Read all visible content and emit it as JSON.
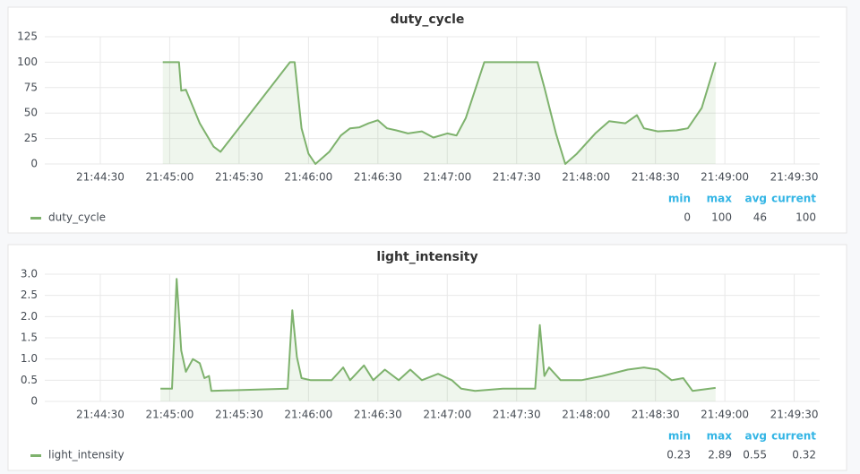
{
  "chart_data": [
    {
      "type": "line",
      "title": "duty_cycle",
      "x": [
        "21:44:57",
        "21:45:04",
        "21:45:05",
        "21:45:07",
        "21:45:13",
        "21:45:19",
        "21:45:22",
        "21:45:52",
        "21:45:54",
        "21:45:57",
        "21:46:00",
        "21:46:03",
        "21:46:09",
        "21:46:14",
        "21:46:18",
        "21:46:22",
        "21:46:26",
        "21:46:30",
        "21:46:34",
        "21:46:38",
        "21:46:43",
        "21:46:49",
        "21:46:54",
        "21:47:00",
        "21:47:04",
        "21:47:08",
        "21:47:16",
        "21:47:39",
        "21:47:42",
        "21:47:47",
        "21:47:51",
        "21:47:56",
        "21:48:04",
        "21:48:10",
        "21:48:17",
        "21:48:22",
        "21:48:25",
        "21:48:31",
        "21:48:39",
        "21:48:44",
        "21:48:50",
        "21:48:56"
      ],
      "series": [
        {
          "name": "duty_cycle",
          "color": "#7eb26d",
          "values": [
            100,
            100,
            72,
            73,
            40,
            17,
            12,
            100,
            100,
            35,
            10,
            0,
            12,
            28,
            35,
            36,
            40,
            43,
            35,
            33,
            30,
            32,
            26,
            30,
            28,
            45,
            100,
            100,
            75,
            30,
            0,
            10,
            30,
            42,
            40,
            48,
            35,
            32,
            33,
            35,
            55,
            100
          ]
        }
      ],
      "xlim": [
        "21:44:06",
        "21:49:41"
      ],
      "xticks": [
        "21:44:30",
        "21:45:00",
        "21:45:30",
        "21:46:00",
        "21:46:30",
        "21:47:00",
        "21:47:30",
        "21:48:00",
        "21:48:30",
        "21:49:00",
        "21:49:30"
      ],
      "ylim": [
        0,
        125
      ],
      "yticks": [
        0,
        25,
        50,
        75,
        100,
        125
      ],
      "grid": true,
      "fill": true,
      "stats_headers": [
        "min",
        "max",
        "avg",
        "current"
      ],
      "stats_values": [
        0,
        100,
        46,
        100
      ]
    },
    {
      "type": "line",
      "title": "light_intensity",
      "x": [
        "21:44:56",
        "21:45:01",
        "21:45:03",
        "21:45:05",
        "21:45:07",
        "21:45:10",
        "21:45:13",
        "21:45:15",
        "21:45:17",
        "21:45:18",
        "21:45:51",
        "21:45:53",
        "21:45:55",
        "21:45:57",
        "21:46:01",
        "21:46:10",
        "21:46:15",
        "21:46:18",
        "21:46:24",
        "21:46:28",
        "21:46:33",
        "21:46:39",
        "21:46:44",
        "21:46:49",
        "21:46:56",
        "21:47:02",
        "21:47:06",
        "21:47:12",
        "21:47:24",
        "21:47:35",
        "21:47:38",
        "21:47:40",
        "21:47:42",
        "21:47:44",
        "21:47:49",
        "21:47:58",
        "21:48:07",
        "21:48:18",
        "21:48:25",
        "21:48:31",
        "21:48:37",
        "21:48:42",
        "21:48:46",
        "21:48:56"
      ],
      "series": [
        {
          "name": "light_intensity",
          "color": "#7eb26d",
          "values": [
            0.3,
            0.3,
            2.89,
            1.2,
            0.7,
            1.0,
            0.9,
            0.55,
            0.6,
            0.25,
            0.3,
            2.15,
            1.05,
            0.55,
            0.5,
            0.5,
            0.8,
            0.5,
            0.85,
            0.5,
            0.75,
            0.5,
            0.75,
            0.5,
            0.65,
            0.5,
            0.3,
            0.25,
            0.3,
            0.3,
            0.3,
            1.8,
            0.6,
            0.8,
            0.5,
            0.5,
            0.6,
            0.75,
            0.8,
            0.75,
            0.5,
            0.55,
            0.25,
            0.32
          ]
        }
      ],
      "xlim": [
        "21:44:06",
        "21:49:41"
      ],
      "xticks": [
        "21:44:30",
        "21:45:00",
        "21:45:30",
        "21:46:00",
        "21:46:30",
        "21:47:00",
        "21:47:30",
        "21:48:00",
        "21:48:30",
        "21:49:00",
        "21:49:30"
      ],
      "ylim": [
        0,
        3
      ],
      "yticks": [
        0,
        0.5,
        {
          "value": 1,
          "label": "1.0"
        },
        1.5,
        {
          "value": 2,
          "label": "2.0"
        },
        2.5,
        {
          "value": 3,
          "label": "3.0"
        }
      ],
      "grid": true,
      "fill": true,
      "stats_headers": [
        "min",
        "max",
        "avg",
        "current"
      ],
      "stats_values": [
        0.23,
        2.89,
        0.55,
        0.32
      ]
    }
  ]
}
